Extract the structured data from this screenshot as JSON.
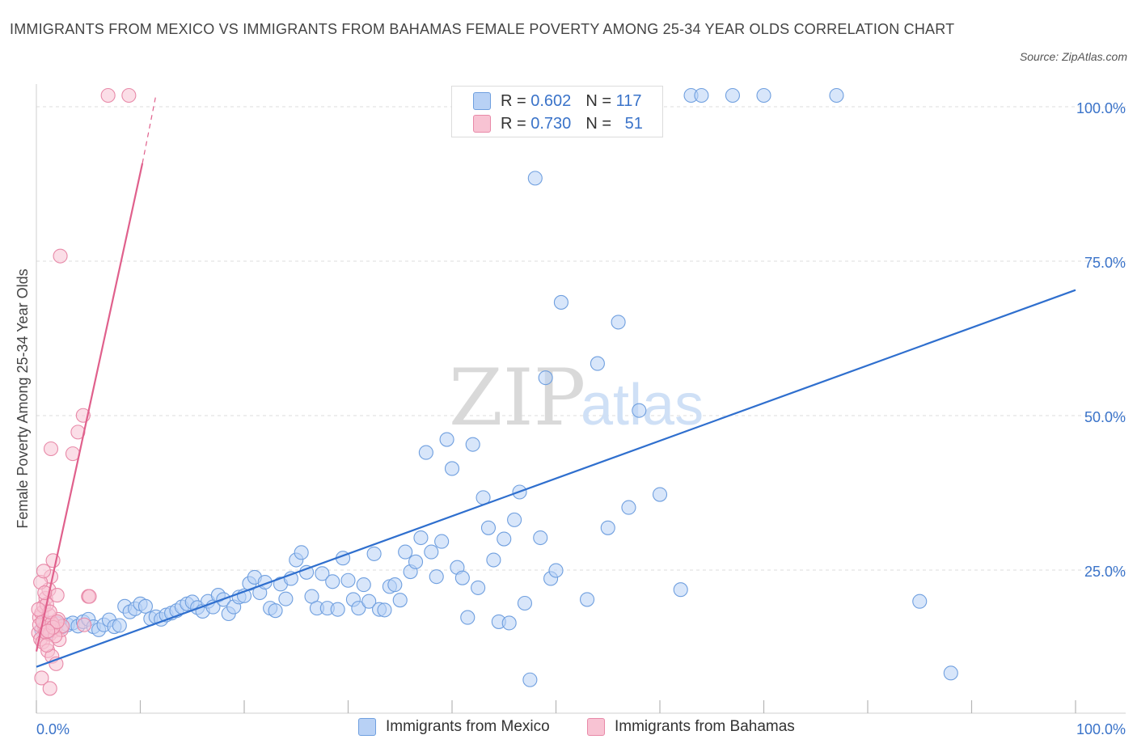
{
  "title": "IMMIGRANTS FROM MEXICO VS IMMIGRANTS FROM BAHAMAS FEMALE POVERTY AMONG 25-34 YEAR OLDS CORRELATION CHART",
  "source": "Source: ZipAtlas.com",
  "watermark": {
    "zip": "ZIP",
    "atlas": "atlas"
  },
  "legend_top": {
    "rows": [
      {
        "r_label": "R =",
        "r_value": "0.602",
        "n_label": "N =",
        "n_value": "117",
        "color": "#b8d1f5"
      },
      {
        "r_label": "R =",
        "r_value": "0.730",
        "n_label": "N =",
        "n_value": "51",
        "color": "#f8c3d3"
      }
    ]
  },
  "legend_bottom": {
    "mexico": "Immigrants from Mexico",
    "bahamas": "Immigrants from Bahamas"
  },
  "colors": {
    "mexico_fill": "#b8d1f5",
    "mexico_stroke": "#6f9fdf",
    "mexico_line": "#2f6fce",
    "bahamas_fill": "#f8c3d3",
    "bahamas_stroke": "#e889a8",
    "bahamas_line": "#e0608c",
    "tick_label": "#3a73c9",
    "grid": "#dedede"
  },
  "chart_data": {
    "type": "scatter",
    "title": "IMMIGRANTS FROM MEXICO VS IMMIGRANTS FROM BAHAMAS FEMALE POVERTY AMONG 25-34 YEAR OLDS CORRELATION CHART",
    "xlabel": "",
    "ylabel": "Female Poverty Among 25-34 Year Olds",
    "xlim": [
      0,
      100
    ],
    "ylim": [
      0,
      100
    ],
    "x_tick_labels": [
      "0.0%",
      "100.0%"
    ],
    "y_tick_labels": [
      {
        "value": 25,
        "label": "25.0%"
      },
      {
        "value": 50,
        "label": "50.0%"
      },
      {
        "value": 75,
        "label": "75.0%"
      },
      {
        "value": 100,
        "label": "100.0%"
      }
    ],
    "grid": true,
    "legend_position": "bottom",
    "series": [
      {
        "name": "Immigrants from Mexico",
        "r": 0.602,
        "n": 117,
        "trend": {
          "x": [
            0,
            100
          ],
          "y": [
            7.5,
            68.5
          ]
        },
        "points": [
          [
            0.5,
            13.5
          ],
          [
            0.8,
            14.8
          ],
          [
            1.2,
            13.2
          ],
          [
            1.5,
            14.2
          ],
          [
            1.8,
            13.8
          ],
          [
            2.0,
            14.5
          ],
          [
            2.5,
            14.0
          ],
          [
            3.0,
            14.3
          ],
          [
            3.5,
            14.6
          ],
          [
            4.0,
            14.1
          ],
          [
            4.5,
            14.8
          ],
          [
            5.0,
            15.2
          ],
          [
            5.5,
            14.0
          ],
          [
            6.0,
            13.5
          ],
          [
            6.5,
            14.3
          ],
          [
            7.0,
            15.1
          ],
          [
            7.5,
            14.0
          ],
          [
            8.0,
            14.2
          ],
          [
            8.5,
            17.3
          ],
          [
            9.0,
            16.4
          ],
          [
            9.5,
            16.9
          ],
          [
            10.0,
            17.7
          ],
          [
            10.5,
            17.3
          ],
          [
            11.0,
            15.3
          ],
          [
            11.5,
            15.6
          ],
          [
            12.0,
            15.2
          ],
          [
            12.5,
            15.9
          ],
          [
            13.0,
            16.2
          ],
          [
            13.5,
            16.6
          ],
          [
            14.0,
            17.2
          ],
          [
            14.5,
            17.7
          ],
          [
            15.0,
            18.0
          ],
          [
            15.5,
            17.1
          ],
          [
            16.0,
            16.5
          ],
          [
            16.5,
            18.1
          ],
          [
            17.0,
            17.2
          ],
          [
            17.5,
            19.1
          ],
          [
            18.0,
            18.4
          ],
          [
            18.5,
            16.1
          ],
          [
            19.0,
            17.2
          ],
          [
            19.5,
            18.8
          ],
          [
            20.0,
            19.0
          ],
          [
            20.5,
            21.0
          ],
          [
            21.0,
            22.0
          ],
          [
            21.5,
            19.5
          ],
          [
            22.0,
            21.2
          ],
          [
            22.5,
            17.0
          ],
          [
            23.0,
            16.6
          ],
          [
            23.5,
            20.9
          ],
          [
            24.0,
            18.5
          ],
          [
            24.5,
            21.8
          ],
          [
            25.0,
            24.8
          ],
          [
            25.5,
            26.0
          ],
          [
            26.0,
            22.8
          ],
          [
            26.5,
            18.9
          ],
          [
            27.0,
            17.0
          ],
          [
            27.5,
            22.6
          ],
          [
            28.0,
            17.0
          ],
          [
            28.5,
            21.3
          ],
          [
            29.0,
            16.8
          ],
          [
            29.5,
            25.1
          ],
          [
            30.0,
            21.5
          ],
          [
            30.5,
            18.4
          ],
          [
            31.0,
            17.0
          ],
          [
            31.5,
            20.8
          ],
          [
            32.0,
            18.1
          ],
          [
            32.5,
            25.8
          ],
          [
            33.0,
            16.8
          ],
          [
            33.5,
            16.7
          ],
          [
            34.0,
            20.5
          ],
          [
            34.5,
            20.8
          ],
          [
            35.0,
            18.3
          ],
          [
            35.5,
            26.1
          ],
          [
            36.0,
            22.9
          ],
          [
            36.5,
            24.5
          ],
          [
            37.0,
            28.4
          ],
          [
            37.5,
            42.2
          ],
          [
            38.0,
            26.1
          ],
          [
            38.5,
            22.1
          ],
          [
            39.0,
            27.8
          ],
          [
            39.5,
            44.3
          ],
          [
            40.0,
            39.6
          ],
          [
            40.5,
            23.6
          ],
          [
            41.0,
            21.9
          ],
          [
            41.5,
            15.5
          ],
          [
            42.0,
            43.5
          ],
          [
            42.5,
            20.3
          ],
          [
            43.0,
            34.9
          ],
          [
            43.5,
            30.0
          ],
          [
            44.0,
            24.8
          ],
          [
            44.5,
            14.8
          ],
          [
            45.0,
            28.2
          ],
          [
            45.5,
            14.6
          ],
          [
            46.0,
            31.3
          ],
          [
            46.5,
            35.8
          ],
          [
            47.0,
            17.8
          ],
          [
            47.5,
            5.4
          ],
          [
            48.0,
            86.6
          ],
          [
            48.5,
            28.4
          ],
          [
            49.0,
            54.3
          ],
          [
            49.5,
            21.8
          ],
          [
            50.0,
            23.1
          ],
          [
            50.5,
            66.5
          ],
          [
            53.0,
            18.4
          ],
          [
            54.0,
            56.6
          ],
          [
            55.0,
            30.0
          ],
          [
            56.0,
            63.3
          ],
          [
            57.0,
            33.3
          ],
          [
            58.0,
            49.0
          ],
          [
            60.0,
            35.4
          ],
          [
            62.0,
            20.0
          ],
          [
            63.0,
            100.0
          ],
          [
            64.0,
            100.0
          ],
          [
            67.0,
            100.0
          ],
          [
            70.0,
            100.0
          ],
          [
            77.0,
            100.0
          ],
          [
            85.0,
            18.1
          ],
          [
            88.0,
            6.5
          ],
          [
            48.8,
            100.0
          ]
        ]
      },
      {
        "name": "Immigrants from Bahamas",
        "r": 0.73,
        "n": 51,
        "trend_solid": {
          "x": [
            0,
            10.2
          ],
          "y": [
            10.0,
            89.0
          ]
        },
        "trend_dashed": {
          "x": [
            10.2,
            11.5
          ],
          "y": [
            89.0,
            100.0
          ]
        },
        "points": [
          [
            0.2,
            13.0
          ],
          [
            0.3,
            15.5
          ],
          [
            0.4,
            12.0
          ],
          [
            0.5,
            16.2
          ],
          [
            0.6,
            11.5
          ],
          [
            0.7,
            17.3
          ],
          [
            0.8,
            13.8
          ],
          [
            0.9,
            18.6
          ],
          [
            1.0,
            14.5
          ],
          [
            1.1,
            10.1
          ],
          [
            1.2,
            20.0
          ],
          [
            1.3,
            12.8
          ],
          [
            1.4,
            22.1
          ],
          [
            1.5,
            9.2
          ],
          [
            1.6,
            24.7
          ],
          [
            1.7,
            14.2
          ],
          [
            1.8,
            13.4
          ],
          [
            1.9,
            8.0
          ],
          [
            2.0,
            19.1
          ],
          [
            2.1,
            15.2
          ],
          [
            2.2,
            11.9
          ],
          [
            2.3,
            74.0
          ],
          [
            2.4,
            13.5
          ],
          [
            2.5,
            14.1
          ],
          [
            0.3,
            14.3
          ],
          [
            0.6,
            14.8
          ],
          [
            0.9,
            13.1
          ],
          [
            1.2,
            15.9
          ],
          [
            1.5,
            14.6
          ],
          [
            1.8,
            12.5
          ],
          [
            0.4,
            21.2
          ],
          [
            0.7,
            23.0
          ],
          [
            1.0,
            17.6
          ],
          [
            1.3,
            16.4
          ],
          [
            1.6,
            13.9
          ],
          [
            0.5,
            5.7
          ],
          [
            1.3,
            4.0
          ],
          [
            3.5,
            42.0
          ],
          [
            1.4,
            42.8
          ],
          [
            4.0,
            45.5
          ],
          [
            4.5,
            48.2
          ],
          [
            4.6,
            14.3
          ],
          [
            5.0,
            18.9
          ],
          [
            5.1,
            18.9
          ],
          [
            2.0,
            14.8
          ],
          [
            1.0,
            11.0
          ],
          [
            0.2,
            16.8
          ],
          [
            0.8,
            19.5
          ],
          [
            6.9,
            100.0
          ],
          [
            8.9,
            100.0
          ],
          [
            1.1,
            13.3
          ]
        ]
      }
    ]
  }
}
